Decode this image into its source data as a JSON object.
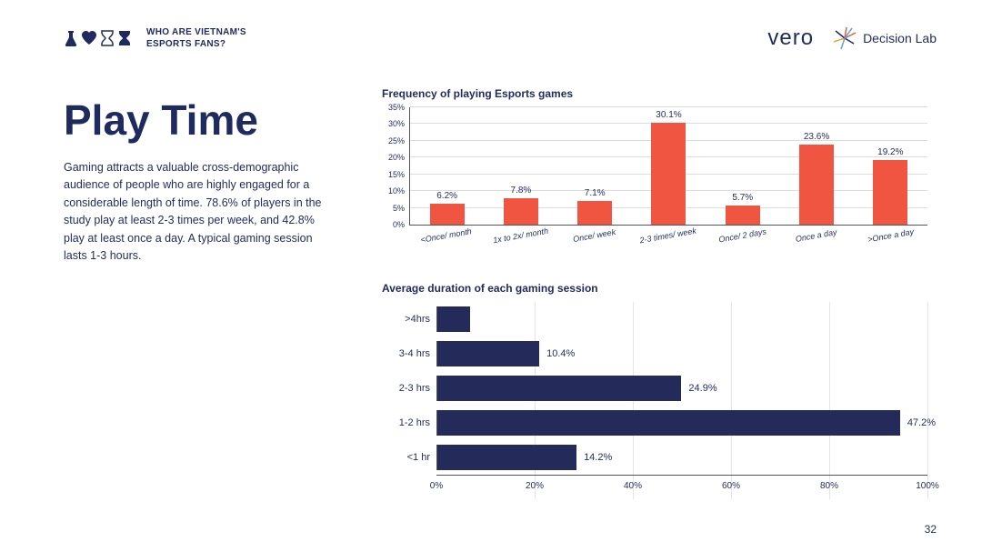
{
  "header": {
    "title_line1": "WHO ARE VIETNAM'S",
    "title_line2": "ESPORTS FANS?",
    "icon_color": "#1f2a5e",
    "logo1_text": "vero",
    "logo2_text": "Decision Lab"
  },
  "main": {
    "title": "Play Time",
    "body": "Gaming attracts a valuable cross-demographic audience of people who are highly engaged for a considerable length of time. 78.6% of players in the study play at least 2-3 times per week, and 42.8% play at least once a day. A typical gaming session lasts 1-3 hours."
  },
  "chart1": {
    "type": "bar",
    "title": "Frequency of playing Esports games",
    "categories": [
      "<Once/ month",
      "1x to 2x/ month",
      "Once/ week",
      "2-3 times/ week",
      "Once/ 2 days",
      "Once a day",
      ">Once a day"
    ],
    "values": [
      6.2,
      7.8,
      7.1,
      30.1,
      5.7,
      23.6,
      19.2
    ],
    "value_labels": [
      "6.2%",
      "7.8%",
      "7.1%",
      "30.1%",
      "5.7%",
      "23.6%",
      "19.2%"
    ],
    "bar_color": "#f05542",
    "ymax": 35,
    "ytick_step": 5,
    "yticks": [
      "0%",
      "5%",
      "10%",
      "15%",
      "20%",
      "25%",
      "30%",
      "35%"
    ],
    "grid_color": "#dddddd",
    "text_color": "#1f2a5e",
    "label_fontsize": 9,
    "value_fontsize": 10
  },
  "chart2": {
    "type": "horizontal_bar",
    "title": "Average duration of each gaming session",
    "categories": [
      ">4hrs",
      "3-4 hrs",
      "2-3 hrs",
      "1-2 hrs",
      "<1 hr"
    ],
    "values": [
      3.3,
      10.4,
      24.9,
      47.2,
      14.2
    ],
    "value_labels": [
      "",
      "10.4%",
      "24.9%",
      "47.2%",
      "14.2%"
    ],
    "bar_color": "#242a59",
    "xmax": 50,
    "display_scale": 100,
    "xticks": [
      0,
      20,
      40,
      60,
      80,
      100
    ],
    "xtick_labels": [
      "0%",
      "20%",
      "40%",
      "60%",
      "80%",
      "100%"
    ],
    "grid_color": "#e5e5e5",
    "text_color": "#1f2a5e"
  },
  "page_number": "32",
  "colors": {
    "primary": "#1f2a5e",
    "accent": "#f05542",
    "bg": "#ffffff"
  }
}
